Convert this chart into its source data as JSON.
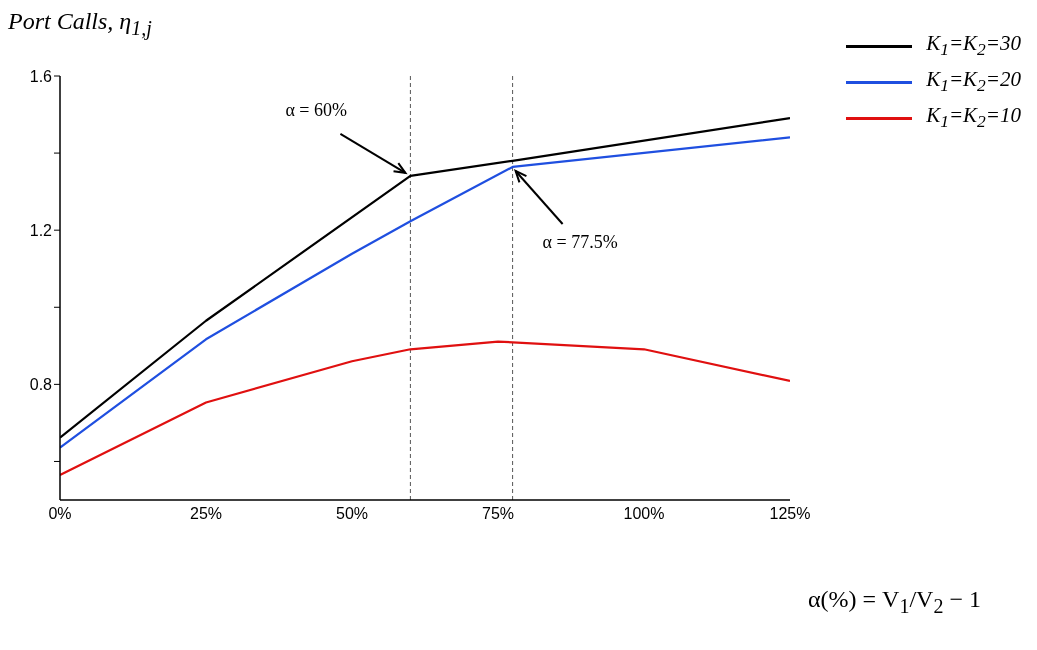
{
  "chart_data": {
    "type": "line",
    "xlabel": "α(%) = V$_{1}$/V$_{2}$ − 1",
    "ylabel": "Port Calls, η$_{1,j}$",
    "xlim": [
      0,
      125
    ],
    "xticks": [
      {
        "value": 0,
        "label": "0%"
      },
      {
        "value": 25,
        "label": "25%"
      },
      {
        "value": 50,
        "label": "50%"
      },
      {
        "value": 75,
        "label": "75%"
      },
      {
        "value": 100,
        "label": "100%"
      },
      {
        "value": 125,
        "label": "125%"
      }
    ],
    "ylim": [
      0.5,
      1.6
    ],
    "yticks": [
      {
        "value": 0.6,
        "label": null
      },
      0.8,
      {
        "value": 1.0,
        "label": null
      },
      1.2,
      {
        "value": 1.4,
        "label": null
      },
      1.6
    ],
    "series": [
      {
        "name": "K$_{1}$=K$_{2}$=30",
        "color": "#000000",
        "x": [
          0,
          25,
          60,
          77.5,
          125
        ],
        "values": [
          0.662,
          0.965,
          1.341,
          1.38,
          1.491
        ]
      },
      {
        "name": "K$_{1}$=K$_{2}$=20",
        "color": "#1f4fe0",
        "x": [
          0,
          25,
          50,
          60,
          77.5,
          125
        ],
        "values": [
          0.636,
          0.917,
          1.139,
          1.223,
          1.364,
          1.441
        ]
      },
      {
        "name": "K$_{1}$=K$_{2}$=10",
        "color": "#e01010",
        "x": [
          0,
          25,
          50,
          60,
          75,
          100,
          125
        ],
        "values": [
          0.565,
          0.753,
          0.86,
          0.891,
          0.911,
          0.891,
          0.809
        ]
      }
    ],
    "ref_lines": [
      {
        "axis": "x",
        "value": 60,
        "color": "#555555",
        "line_style": "dashed"
      },
      {
        "axis": "x",
        "value": 77.5,
        "color": "#555555",
        "line_style": "dashed"
      }
    ],
    "annotations": [
      {
        "text": "α = 60%",
        "x": 60,
        "y": 1.341
      },
      {
        "text": "α = 77.5%",
        "x": 77.5,
        "y": 1.364
      }
    ],
    "legend": "top right"
  }
}
